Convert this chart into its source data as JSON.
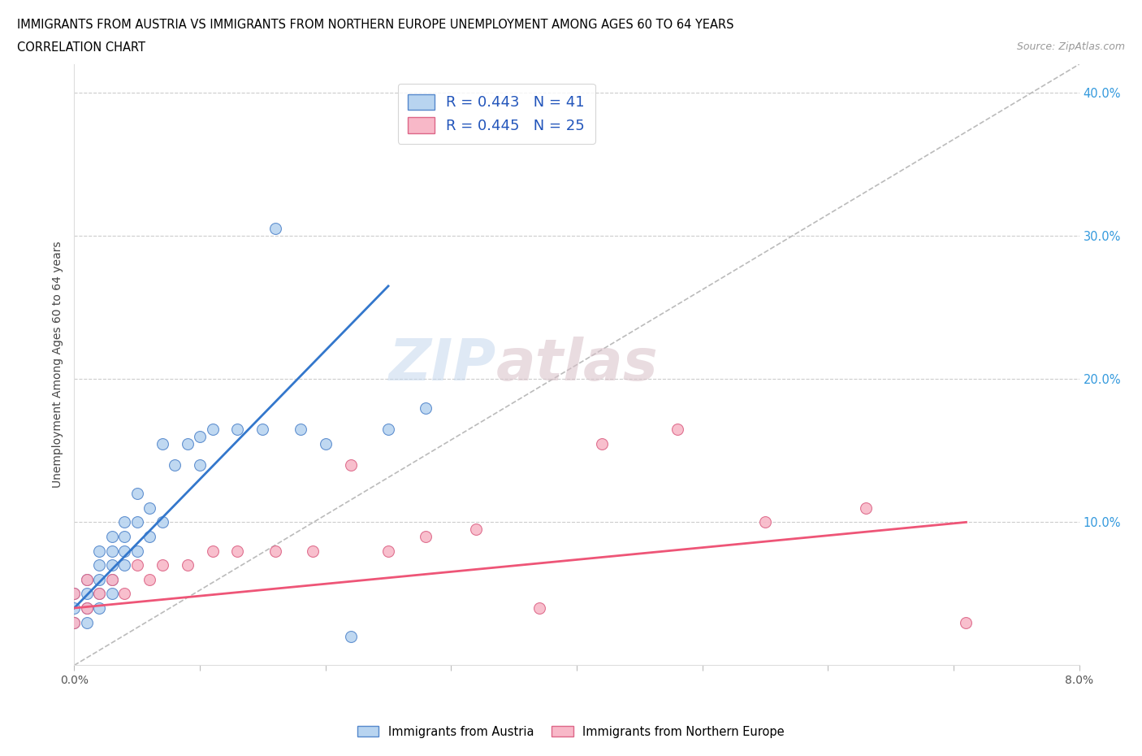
{
  "title_line1": "IMMIGRANTS FROM AUSTRIA VS IMMIGRANTS FROM NORTHERN EUROPE UNEMPLOYMENT AMONG AGES 60 TO 64 YEARS",
  "title_line2": "CORRELATION CHART",
  "source": "Source: ZipAtlas.com",
  "ylabel": "Unemployment Among Ages 60 to 64 years",
  "xlim": [
    0.0,
    0.08
  ],
  "ylim": [
    0.0,
    0.42
  ],
  "x_ticks": [
    0.0,
    0.01,
    0.02,
    0.03,
    0.04,
    0.05,
    0.06,
    0.07,
    0.08
  ],
  "y_ticks": [
    0.0,
    0.1,
    0.2,
    0.3,
    0.4
  ],
  "austria_color": "#b8d4f0",
  "austria_edge_color": "#5588cc",
  "northern_europe_color": "#f8b8c8",
  "northern_europe_edge_color": "#dd6688",
  "trend_austria_color": "#3377cc",
  "trend_northern_europe_color": "#ee5577",
  "trend_dashed_color": "#bbbbbb",
  "watermark_zip": "ZIP",
  "watermark_atlas": "atlas",
  "R_austria": 0.443,
  "N_austria": 41,
  "R_northern": 0.445,
  "N_northern": 25,
  "austria_x": [
    0.0,
    0.0,
    0.0,
    0.001,
    0.001,
    0.001,
    0.001,
    0.002,
    0.002,
    0.002,
    0.002,
    0.002,
    0.003,
    0.003,
    0.003,
    0.003,
    0.003,
    0.004,
    0.004,
    0.004,
    0.004,
    0.005,
    0.005,
    0.005,
    0.006,
    0.006,
    0.007,
    0.007,
    0.008,
    0.009,
    0.01,
    0.01,
    0.011,
    0.013,
    0.015,
    0.016,
    0.018,
    0.02,
    0.022,
    0.025,
    0.028
  ],
  "austria_y": [
    0.03,
    0.04,
    0.05,
    0.03,
    0.04,
    0.05,
    0.06,
    0.04,
    0.05,
    0.06,
    0.07,
    0.08,
    0.05,
    0.06,
    0.07,
    0.08,
    0.09,
    0.07,
    0.08,
    0.09,
    0.1,
    0.08,
    0.1,
    0.12,
    0.09,
    0.11,
    0.1,
    0.155,
    0.14,
    0.155,
    0.14,
    0.16,
    0.165,
    0.165,
    0.165,
    0.305,
    0.165,
    0.155,
    0.02,
    0.165,
    0.18
  ],
  "northern_x": [
    0.0,
    0.0,
    0.001,
    0.001,
    0.002,
    0.003,
    0.004,
    0.005,
    0.006,
    0.007,
    0.009,
    0.011,
    0.013,
    0.016,
    0.019,
    0.022,
    0.025,
    0.028,
    0.032,
    0.037,
    0.042,
    0.048,
    0.055,
    0.063,
    0.071
  ],
  "northern_y": [
    0.03,
    0.05,
    0.04,
    0.06,
    0.05,
    0.06,
    0.05,
    0.07,
    0.06,
    0.07,
    0.07,
    0.08,
    0.08,
    0.08,
    0.08,
    0.14,
    0.08,
    0.09,
    0.095,
    0.04,
    0.155,
    0.165,
    0.1,
    0.11,
    0.03
  ],
  "trend_austria_x0": 0.0,
  "trend_austria_y0": 0.04,
  "trend_austria_x1": 0.025,
  "trend_austria_y1": 0.265,
  "trend_northern_x0": 0.0,
  "trend_northern_y0": 0.04,
  "trend_northern_x1": 0.071,
  "trend_northern_y1": 0.1
}
